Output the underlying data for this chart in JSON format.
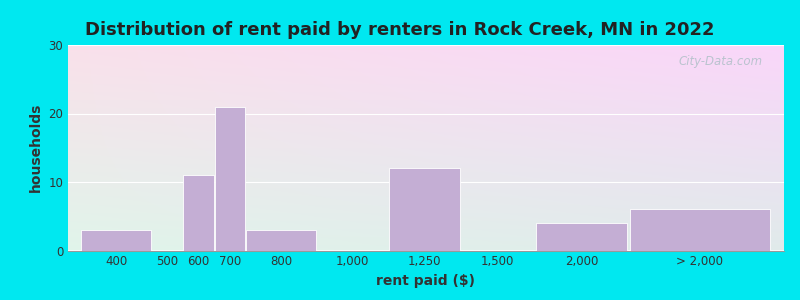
{
  "title": "Distribution of rent paid by renters in Rock Creek, MN in 2022",
  "xlabel": "rent paid ($)",
  "ylabel": "households",
  "bar_labels": [
    "400",
    "500",
    "600",
    "700",
    "800",
    "1,000",
    "1,250",
    "1,500",
    "2,000",
    "> 2,000"
  ],
  "bar_values": [
    3,
    0,
    11,
    21,
    3,
    0,
    12,
    0,
    4,
    6
  ],
  "bar_color": "#c4aed4",
  "ylim": [
    0,
    30
  ],
  "yticks": [
    0,
    10,
    20,
    30
  ],
  "background_outer": "#00e8f0",
  "watermark": "City-Data.com",
  "title_fontsize": 13,
  "axis_label_fontsize": 10,
  "tick_fontsize": 8.5,
  "grad_colors": [
    "#d4ecd4",
    "#e8f8e8",
    "#f4fdf0",
    "#e0f0f8",
    "#d0e8f4"
  ]
}
